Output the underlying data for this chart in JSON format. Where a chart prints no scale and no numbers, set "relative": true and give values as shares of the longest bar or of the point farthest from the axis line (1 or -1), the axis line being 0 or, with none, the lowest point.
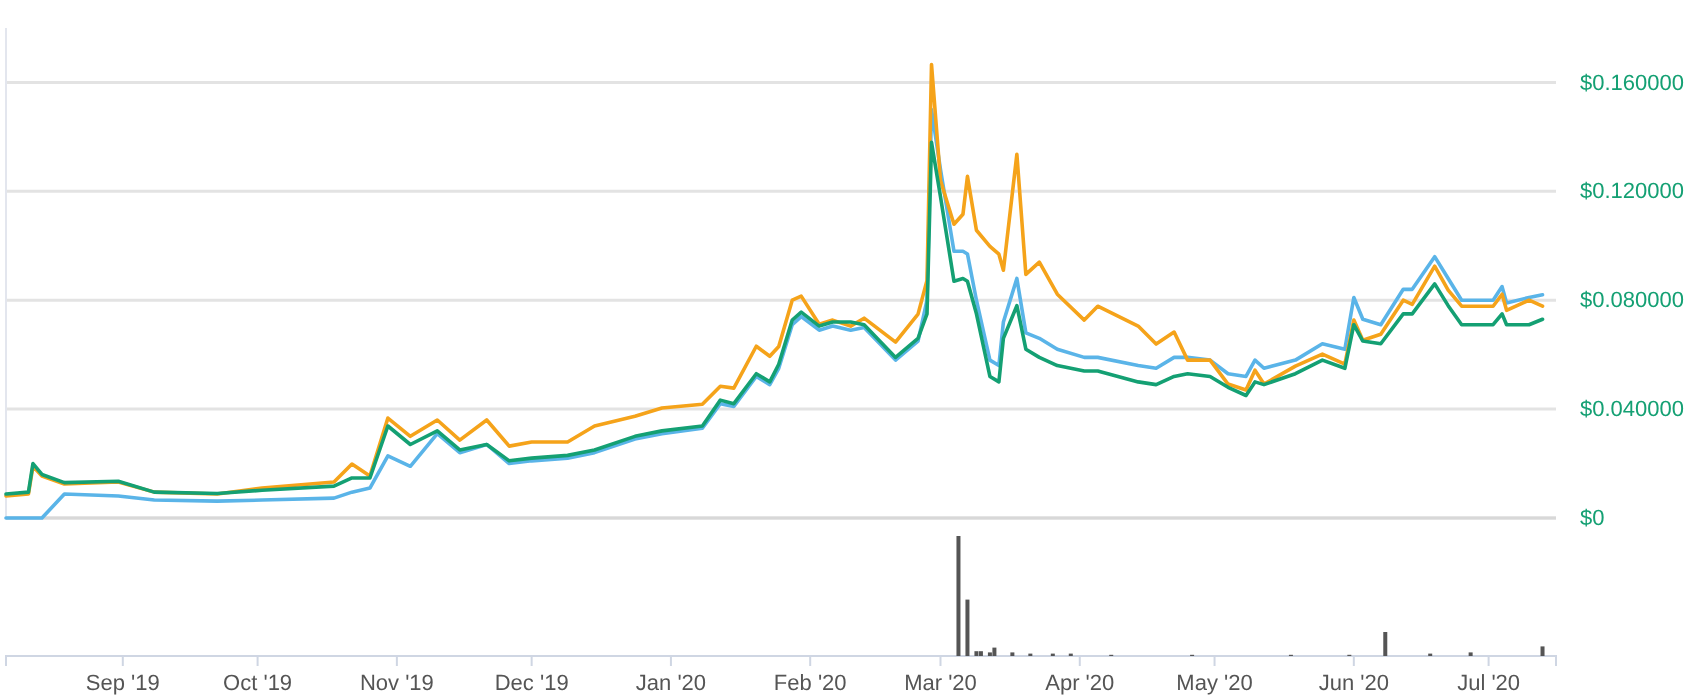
{
  "chart_data": [
    {
      "type": "line",
      "tick_labels": "y",
      "xlim": [
        "2019-08-06",
        "2020-07-16"
      ],
      "ylim": [
        0,
        0.18
      ],
      "grid": "y",
      "yticks": [
        {
          "value": 0,
          "label": "$0"
        },
        {
          "value": 0.04,
          "label": "$0.040000"
        },
        {
          "value": 0.08,
          "label": "$0.080000"
        },
        {
          "value": 0.12,
          "label": "$0.120000"
        },
        {
          "value": 0.16,
          "label": "$0.160000"
        }
      ],
      "x": [
        "2019-08-06",
        "2019-08-11",
        "2019-08-12",
        "2019-08-14",
        "2019-08-19",
        "2019-08-31",
        "2019-09-08",
        "2019-09-22",
        "2019-10-02",
        "2019-10-18",
        "2019-10-22",
        "2019-10-26",
        "2019-10-30",
        "2019-11-04",
        "2019-11-10",
        "2019-11-15",
        "2019-11-21",
        "2019-11-26",
        "2019-12-01",
        "2019-12-09",
        "2019-12-15",
        "2019-12-24",
        "2019-12-30",
        "2020-01-08",
        "2020-01-12",
        "2020-01-15",
        "2020-01-20",
        "2020-01-23",
        "2020-01-25",
        "2020-01-28",
        "2020-01-30",
        "2020-02-03",
        "2020-02-06",
        "2020-02-10",
        "2020-02-13",
        "2020-02-20",
        "2020-02-25",
        "2020-02-27",
        "2020-02-28",
        "2020-03-01",
        "2020-03-04",
        "2020-03-06",
        "2020-03-07",
        "2020-03-09",
        "2020-03-12",
        "2020-03-14",
        "2020-03-15",
        "2020-03-18",
        "2020-03-20",
        "2020-03-23",
        "2020-03-27",
        "2020-04-02",
        "2020-04-05",
        "2020-04-14",
        "2020-04-18",
        "2020-04-22",
        "2020-04-25",
        "2020-04-30",
        "2020-05-04",
        "2020-05-08",
        "2020-05-10",
        "2020-05-12",
        "2020-05-19",
        "2020-05-25",
        "2020-05-30",
        "2020-06-01",
        "2020-06-03",
        "2020-06-07",
        "2020-06-12",
        "2020-06-14",
        "2020-06-19",
        "2020-06-22",
        "2020-06-25",
        "2020-07-02",
        "2020-07-04",
        "2020-07-05",
        "2020-07-10",
        "2020-07-13"
      ],
      "series": [
        {
          "color": "#5ab4e8",
          "values": [
            0,
            0,
            0,
            0,
            0.0088,
            0.0081,
            0.0066,
            0.0062,
            0.0066,
            0.0073,
            0.0095,
            0.011,
            0.0228,
            0.019,
            0.031,
            0.024,
            0.027,
            0.02,
            0.021,
            0.022,
            0.024,
            0.029,
            0.031,
            0.033,
            0.042,
            0.041,
            0.052,
            0.049,
            0.055,
            0.071,
            0.074,
            0.069,
            0.0705,
            0.069,
            0.07,
            0.058,
            0.065,
            0.08,
            0.15,
            0.128,
            0.098,
            0.098,
            0.097,
            0.08,
            0.058,
            0.056,
            0.072,
            0.088,
            0.068,
            0.066,
            0.062,
            0.059,
            0.059,
            0.056,
            0.055,
            0.059,
            0.059,
            0.058,
            0.053,
            0.052,
            0.058,
            0.055,
            0.058,
            0.064,
            0.062,
            0.081,
            0.073,
            0.071,
            0.084,
            0.084,
            0.096,
            0.088,
            0.08,
            0.08,
            0.085,
            0.079,
            0.081,
            0.082
          ]
        },
        {
          "color": "#f5a31a",
          "values": [
            0.0081,
            0.0088,
            0.019,
            0.0154,
            0.0125,
            0.0132,
            0.0095,
            0.0088,
            0.011,
            0.0132,
            0.0198,
            0.0154,
            0.0367,
            0.03,
            0.036,
            0.0286,
            0.036,
            0.0264,
            0.0279,
            0.0279,
            0.0338,
            0.0374,
            0.0404,
            0.0418,
            0.0484,
            0.0477,
            0.0631,
            0.0594,
            0.063,
            0.08,
            0.0815,
            0.0712,
            0.0727,
            0.0705,
            0.0734,
            0.0646,
            0.0749,
            0.0873,
            0.1666,
            0.124,
            0.1079,
            0.1116,
            0.1255,
            0.1057,
            0.0998,
            0.0969,
            0.091,
            0.1336,
            0.0895,
            0.094,
            0.0822,
            0.0727,
            0.0778,
            0.0705,
            0.0639,
            0.0683,
            0.058,
            0.058,
            0.0492,
            0.047,
            0.0543,
            0.0492,
            0.0558,
            0.0602,
            0.0565,
            0.0727,
            0.0653,
            0.0675,
            0.08,
            0.0785,
            0.0925,
            0.0837,
            0.0778,
            0.0778,
            0.0822,
            0.0763,
            0.08,
            0.0778
          ]
        },
        {
          "color": "#14a073",
          "values": [
            0.0088,
            0.0095,
            0.02,
            0.016,
            0.013,
            0.0135,
            0.0095,
            0.009,
            0.0102,
            0.0117,
            0.0147,
            0.0147,
            0.0338,
            0.027,
            0.032,
            0.025,
            0.027,
            0.021,
            0.022,
            0.023,
            0.025,
            0.03,
            0.032,
            0.0338,
            0.0433,
            0.042,
            0.053,
            0.05,
            0.0565,
            0.0727,
            0.0756,
            0.0705,
            0.072,
            0.072,
            0.071,
            0.059,
            0.066,
            0.075,
            0.138,
            0.118,
            0.087,
            0.088,
            0.087,
            0.075,
            0.052,
            0.05,
            0.066,
            0.078,
            0.062,
            0.059,
            0.056,
            0.054,
            0.054,
            0.05,
            0.049,
            0.052,
            0.053,
            0.052,
            0.048,
            0.045,
            0.05,
            0.049,
            0.053,
            0.058,
            0.055,
            0.071,
            0.065,
            0.064,
            0.075,
            0.075,
            0.086,
            0.078,
            0.071,
            0.071,
            0.075,
            0.071,
            0.071,
            0.073
          ]
        }
      ]
    },
    {
      "type": "bar",
      "relative": true,
      "color": "#555555",
      "xlim": [
        "2019-08-06",
        "2020-07-16"
      ],
      "xticks": [
        {
          "value": "2019-09-01",
          "label": "Sep '19"
        },
        {
          "value": "2019-10-01",
          "label": "Oct '19"
        },
        {
          "value": "2019-11-01",
          "label": "Nov '19"
        },
        {
          "value": "2019-12-01",
          "label": "Dec '19"
        },
        {
          "value": "2020-01-01",
          "label": "Jan '20"
        },
        {
          "value": "2020-02-01",
          "label": "Feb '20"
        },
        {
          "value": "2020-03-01",
          "label": "Mar '20"
        },
        {
          "value": "2020-04-01",
          "label": "Apr '20"
        },
        {
          "value": "2020-05-01",
          "label": "May '20"
        },
        {
          "value": "2020-06-01",
          "label": "Jun '20"
        },
        {
          "value": "2020-07-01",
          "label": "Jul '20"
        }
      ],
      "x": [
        "2020-03-05",
        "2020-03-07",
        "2020-03-09",
        "2020-03-10",
        "2020-03-12",
        "2020-03-13",
        "2020-03-17",
        "2020-03-21",
        "2020-03-26",
        "2020-03-30",
        "2020-04-08",
        "2020-04-26",
        "2020-05-18",
        "2020-05-31",
        "2020-06-08",
        "2020-06-18",
        "2020-06-27",
        "2020-07-13"
      ],
      "values": [
        1,
        0.47,
        0.04,
        0.04,
        0.03,
        0.07,
        0.03,
        0.02,
        0.02,
        0.02,
        0.01,
        0.01,
        0.01,
        0.01,
        0.2,
        0.02,
        0.03,
        0.08
      ]
    }
  ]
}
